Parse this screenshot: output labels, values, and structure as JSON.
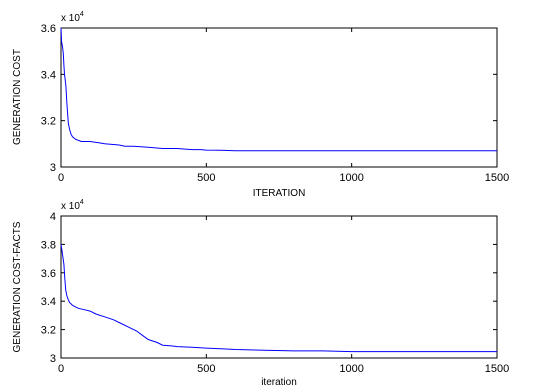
{
  "chart_data": [
    {
      "type": "line",
      "title": "",
      "xlabel": "ITERATION",
      "ylabel": "GENERATION COST",
      "y_multiplier": "x 10",
      "y_multiplier_exp": "4",
      "xlim": [
        0,
        1500
      ],
      "ylim": [
        3.0,
        3.6
      ],
      "x_ticks": [
        0,
        500,
        1000,
        1500
      ],
      "x_tick_labels": [
        "0",
        "500",
        "1000",
        "1500"
      ],
      "y_ticks": [
        3.0,
        3.2,
        3.4,
        3.6
      ],
      "y_tick_labels": [
        "3",
        "3.2",
        "3.4",
        "3.6"
      ],
      "grid": false,
      "line_color": "#0000ff",
      "series": [
        {
          "x": [
            0,
            2,
            5,
            8,
            10,
            12,
            14,
            17,
            20,
            25,
            30,
            35,
            40,
            45,
            50,
            60,
            70,
            85,
            100,
            130,
            150,
            200,
            220,
            250,
            300,
            350,
            400,
            450,
            480,
            500,
            550,
            600,
            700,
            800,
            900,
            1000,
            1100,
            1200,
            1300,
            1400,
            1500
          ],
          "values": [
            3.6,
            3.54,
            3.52,
            3.49,
            3.44,
            3.4,
            3.38,
            3.35,
            3.28,
            3.19,
            3.16,
            3.14,
            3.13,
            3.125,
            3.12,
            3.115,
            3.11,
            3.11,
            3.11,
            3.105,
            3.1,
            3.095,
            3.09,
            3.09,
            3.085,
            3.08,
            3.08,
            3.075,
            3.075,
            3.073,
            3.072,
            3.07,
            3.07,
            3.07,
            3.07,
            3.07,
            3.07,
            3.07,
            3.07,
            3.07,
            3.07
          ]
        }
      ]
    },
    {
      "type": "line",
      "title": "",
      "xlabel": "iteration",
      "ylabel": "GENERATION COST-FACTS",
      "y_multiplier": "x 10",
      "y_multiplier_exp": "4",
      "xlim": [
        0,
        1500
      ],
      "ylim": [
        3.0,
        4.0
      ],
      "x_ticks": [
        0,
        500,
        1000,
        1500
      ],
      "x_tick_labels": [
        "0",
        "500",
        "1000",
        "1500"
      ],
      "y_ticks": [
        3.0,
        3.2,
        3.4,
        3.6,
        3.8,
        4.0
      ],
      "y_tick_labels": [
        "3",
        "3.2",
        "3.4",
        "3.6",
        "3.8",
        "4"
      ],
      "grid": false,
      "line_color": "#0000ff",
      "series": [
        {
          "x": [
            0,
            3,
            6,
            10,
            13,
            16,
            20,
            25,
            30,
            35,
            40,
            50,
            60,
            80,
            100,
            120,
            150,
            180,
            200,
            230,
            260,
            280,
            300,
            330,
            350,
            380,
            400,
            450,
            500,
            550,
            600,
            700,
            800,
            900,
            1000,
            1100,
            1200,
            1300,
            1400,
            1500
          ],
          "values": [
            3.8,
            3.76,
            3.72,
            3.66,
            3.56,
            3.48,
            3.44,
            3.41,
            3.39,
            3.38,
            3.37,
            3.36,
            3.35,
            3.34,
            3.33,
            3.31,
            3.29,
            3.27,
            3.25,
            3.22,
            3.19,
            3.16,
            3.13,
            3.11,
            3.09,
            3.085,
            3.08,
            3.075,
            3.07,
            3.065,
            3.06,
            3.055,
            3.05,
            3.05,
            3.045,
            3.045,
            3.045,
            3.045,
            3.045,
            3.045
          ]
        }
      ]
    }
  ]
}
